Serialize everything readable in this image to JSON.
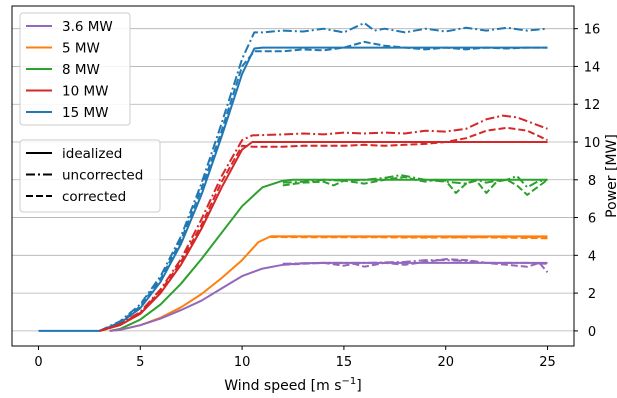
{
  "chart_data": {
    "type": "line",
    "title": "",
    "xlabel": "Wind speed [m s",
    "xlabel_sup": "−1",
    "xlabel_close": "]",
    "ylabel": "Power [MW]",
    "ylabel_side": "right",
    "xlim": [
      -1.3,
      26.3
    ],
    "ylim": [
      -0.8,
      17.2
    ],
    "xticks": [
      0,
      5,
      10,
      15,
      20,
      25
    ],
    "yticks": [
      0,
      2,
      4,
      6,
      8,
      10,
      12,
      14,
      16
    ],
    "grid": "horizontal",
    "legends": [
      {
        "placement": "top-left",
        "entries": [
          {
            "label": "3.6 MW",
            "color": "#9467bd",
            "style": "solid"
          },
          {
            "label": "5 MW",
            "color": "#ff7f0e",
            "style": "solid"
          },
          {
            "label": "8 MW",
            "color": "#2ca02c",
            "style": "solid"
          },
          {
            "label": "10 MW",
            "color": "#d62728",
            "style": "solid"
          },
          {
            "label": "15 MW",
            "color": "#1f77b4",
            "style": "solid"
          }
        ]
      },
      {
        "placement": "upper-left",
        "entries": [
          {
            "label": "idealized",
            "color": "#000000",
            "style": "solid"
          },
          {
            "label": "uncorrected",
            "color": "#000000",
            "style": "dashdot"
          },
          {
            "label": "corrected",
            "color": "#000000",
            "style": "dashed"
          }
        ]
      }
    ],
    "series": [
      {
        "turbine": "15 MW",
        "variant": "idealized",
        "color": "#1f77b4",
        "style": "solid",
        "points": [
          [
            0,
            0
          ],
          [
            3,
            0
          ],
          [
            4,
            0.4
          ],
          [
            5,
            1.2
          ],
          [
            6,
            2.6
          ],
          [
            7,
            4.6
          ],
          [
            8,
            7.2
          ],
          [
            9,
            10.3
          ],
          [
            10,
            13.6
          ],
          [
            10.6,
            14.95
          ],
          [
            11,
            15.0
          ],
          [
            25,
            15.0
          ]
        ]
      },
      {
        "turbine": "15 MW",
        "variant": "uncorrected",
        "color": "#1f77b4",
        "style": "dashdot",
        "points": [
          [
            3,
            0
          ],
          [
            4,
            0.5
          ],
          [
            5,
            1.4
          ],
          [
            6,
            2.9
          ],
          [
            7,
            5.0
          ],
          [
            8,
            7.8
          ],
          [
            9,
            11.0
          ],
          [
            10,
            14.4
          ],
          [
            10.6,
            15.8
          ],
          [
            11,
            15.8
          ],
          [
            12,
            15.9
          ],
          [
            13,
            15.85
          ],
          [
            14,
            16.0
          ],
          [
            15,
            15.8
          ],
          [
            16,
            16.3
          ],
          [
            16.5,
            15.9
          ],
          [
            17,
            16.0
          ],
          [
            18,
            15.8
          ],
          [
            19,
            16.0
          ],
          [
            20,
            15.85
          ],
          [
            21,
            16.05
          ],
          [
            22,
            15.9
          ],
          [
            23,
            16.05
          ],
          [
            24,
            15.9
          ],
          [
            25,
            16.0
          ]
        ]
      },
      {
        "turbine": "15 MW",
        "variant": "corrected",
        "color": "#1f77b4",
        "style": "dashed",
        "points": [
          [
            3,
            0
          ],
          [
            4,
            0.45
          ],
          [
            5,
            1.3
          ],
          [
            6,
            2.75
          ],
          [
            7,
            4.8
          ],
          [
            8,
            7.5
          ],
          [
            9,
            10.6
          ],
          [
            10,
            14.0
          ],
          [
            10.6,
            14.8
          ],
          [
            11,
            14.8
          ],
          [
            12,
            14.8
          ],
          [
            13,
            14.9
          ],
          [
            14,
            14.85
          ],
          [
            15,
            15.0
          ],
          [
            16,
            15.3
          ],
          [
            17,
            15.1
          ],
          [
            18,
            15.0
          ],
          [
            19,
            14.9
          ],
          [
            20,
            15.0
          ],
          [
            21,
            14.9
          ],
          [
            22,
            15.0
          ],
          [
            23,
            14.95
          ],
          [
            24,
            15.0
          ],
          [
            25,
            15.0
          ]
        ]
      },
      {
        "turbine": "10 MW",
        "variant": "idealized",
        "color": "#d62728",
        "style": "solid",
        "points": [
          [
            3,
            0
          ],
          [
            4,
            0.3
          ],
          [
            5,
            0.9
          ],
          [
            6,
            2.0
          ],
          [
            7,
            3.5
          ],
          [
            8,
            5.4
          ],
          [
            9,
            7.6
          ],
          [
            10,
            9.6
          ],
          [
            10.5,
            10.0
          ],
          [
            11,
            10.0
          ],
          [
            25,
            10.0
          ]
        ]
      },
      {
        "turbine": "10 MW",
        "variant": "uncorrected",
        "color": "#d62728",
        "style": "dashdot",
        "points": [
          [
            3,
            0
          ],
          [
            4,
            0.35
          ],
          [
            5,
            1.0
          ],
          [
            6,
            2.2
          ],
          [
            7,
            3.8
          ],
          [
            8,
            5.9
          ],
          [
            9,
            8.2
          ],
          [
            10,
            10.1
          ],
          [
            10.5,
            10.35
          ],
          [
            12,
            10.4
          ],
          [
            13,
            10.45
          ],
          [
            14,
            10.4
          ],
          [
            15,
            10.5
          ],
          [
            16,
            10.45
          ],
          [
            17,
            10.5
          ],
          [
            18,
            10.45
          ],
          [
            19,
            10.6
          ],
          [
            20,
            10.55
          ],
          [
            21,
            10.7
          ],
          [
            22,
            11.2
          ],
          [
            22.8,
            11.4
          ],
          [
            23.5,
            11.3
          ],
          [
            24,
            11.1
          ],
          [
            25,
            10.7
          ]
        ]
      },
      {
        "turbine": "10 MW",
        "variant": "corrected",
        "color": "#d62728",
        "style": "dashed",
        "points": [
          [
            3,
            0
          ],
          [
            4,
            0.32
          ],
          [
            5,
            0.95
          ],
          [
            6,
            2.1
          ],
          [
            7,
            3.65
          ],
          [
            8,
            5.6
          ],
          [
            9,
            7.9
          ],
          [
            10,
            9.8
          ],
          [
            10.5,
            9.75
          ],
          [
            12,
            9.75
          ],
          [
            13,
            9.8
          ],
          [
            14,
            9.8
          ],
          [
            15,
            9.8
          ],
          [
            16,
            9.85
          ],
          [
            17,
            9.8
          ],
          [
            18,
            9.85
          ],
          [
            19,
            9.9
          ],
          [
            20,
            10.0
          ],
          [
            21,
            10.2
          ],
          [
            22,
            10.6
          ],
          [
            23,
            10.75
          ],
          [
            24,
            10.6
          ],
          [
            25,
            10.1
          ]
        ]
      },
      {
        "turbine": "8 MW",
        "variant": "idealized",
        "color": "#2ca02c",
        "style": "solid",
        "points": [
          [
            3.5,
            0
          ],
          [
            4,
            0.1
          ],
          [
            5,
            0.6
          ],
          [
            6,
            1.4
          ],
          [
            7,
            2.5
          ],
          [
            8,
            3.8
          ],
          [
            9,
            5.2
          ],
          [
            10,
            6.6
          ],
          [
            11,
            7.6
          ],
          [
            12,
            7.95
          ],
          [
            12.5,
            8.0
          ],
          [
            25,
            8.0
          ]
        ]
      },
      {
        "turbine": "8 MW",
        "variant": "uncorrected",
        "color": "#2ca02c",
        "style": "dashdot",
        "points": [
          [
            12,
            7.85
          ],
          [
            13,
            7.9
          ],
          [
            14,
            8.0
          ],
          [
            15,
            7.95
          ],
          [
            16,
            8.0
          ],
          [
            17,
            8.1
          ],
          [
            17.8,
            8.25
          ],
          [
            18.5,
            8.1
          ],
          [
            19,
            8.0
          ],
          [
            20,
            7.9
          ],
          [
            21,
            7.8
          ],
          [
            21.5,
            8.0
          ],
          [
            22,
            7.85
          ],
          [
            22.5,
            7.95
          ],
          [
            23,
            8.0
          ],
          [
            23.5,
            8.2
          ],
          [
            24,
            7.6
          ],
          [
            24.5,
            7.9
          ],
          [
            25,
            8.0
          ]
        ]
      },
      {
        "turbine": "8 MW",
        "variant": "corrected",
        "color": "#2ca02c",
        "style": "dashed",
        "points": [
          [
            12,
            7.7
          ],
          [
            13,
            7.85
          ],
          [
            14,
            7.9
          ],
          [
            14.5,
            7.7
          ],
          [
            15,
            7.95
          ],
          [
            16,
            7.8
          ],
          [
            17,
            8.0
          ],
          [
            18,
            8.15
          ],
          [
            18.5,
            8.0
          ],
          [
            19,
            7.9
          ],
          [
            19.5,
            8.0
          ],
          [
            20,
            7.95
          ],
          [
            20.5,
            7.3
          ],
          [
            21,
            7.8
          ],
          [
            21.5,
            7.95
          ],
          [
            22,
            7.3
          ],
          [
            22.5,
            7.9
          ],
          [
            23,
            8.0
          ],
          [
            23.5,
            7.7
          ],
          [
            24,
            7.2
          ],
          [
            24.5,
            7.6
          ],
          [
            25,
            8.0
          ]
        ]
      },
      {
        "turbine": "5 MW",
        "variant": "idealized",
        "color": "#ff7f0e",
        "style": "solid",
        "points": [
          [
            3.5,
            0
          ],
          [
            4,
            0.05
          ],
          [
            5,
            0.3
          ],
          [
            6,
            0.7
          ],
          [
            7,
            1.25
          ],
          [
            8,
            1.95
          ],
          [
            9,
            2.8
          ],
          [
            10,
            3.75
          ],
          [
            10.8,
            4.7
          ],
          [
            11.4,
            5.0
          ],
          [
            25,
            5.0
          ]
        ]
      },
      {
        "turbine": "5 MW",
        "variant": "uncorrected",
        "color": "#ff7f0e",
        "style": "dashdot",
        "points": [
          [
            11.4,
            5.0
          ],
          [
            13,
            5.0
          ],
          [
            15,
            4.98
          ],
          [
            18,
            4.98
          ],
          [
            21,
            4.96
          ],
          [
            23,
            4.98
          ],
          [
            25,
            4.96
          ]
        ]
      },
      {
        "turbine": "5 MW",
        "variant": "corrected",
        "color": "#ff7f0e",
        "style": "dashed",
        "points": [
          [
            11.4,
            4.97
          ],
          [
            13,
            4.96
          ],
          [
            16,
            4.96
          ],
          [
            19,
            4.94
          ],
          [
            22,
            4.95
          ],
          [
            25,
            4.9
          ]
        ]
      },
      {
        "turbine": "3.6 MW",
        "variant": "idealized",
        "color": "#9467bd",
        "style": "solid",
        "points": [
          [
            3.5,
            0
          ],
          [
            4,
            0.05
          ],
          [
            5,
            0.3
          ],
          [
            6,
            0.65
          ],
          [
            7,
            1.1
          ],
          [
            8,
            1.6
          ],
          [
            9,
            2.25
          ],
          [
            10,
            2.9
          ],
          [
            11,
            3.3
          ],
          [
            12,
            3.5
          ],
          [
            13,
            3.58
          ],
          [
            14,
            3.6
          ],
          [
            25,
            3.6
          ]
        ]
      },
      {
        "turbine": "3.6 MW",
        "variant": "uncorrected",
        "color": "#9467bd",
        "style": "dashdot",
        "points": [
          [
            12,
            3.55
          ],
          [
            14,
            3.6
          ],
          [
            16,
            3.6
          ],
          [
            18,
            3.65
          ],
          [
            19,
            3.75
          ],
          [
            20,
            3.75
          ],
          [
            21,
            3.7
          ],
          [
            22,
            3.6
          ],
          [
            23,
            3.6
          ],
          [
            24,
            3.6
          ],
          [
            25,
            3.55
          ]
        ]
      },
      {
        "turbine": "3.6 MW",
        "variant": "corrected",
        "color": "#9467bd",
        "style": "dashed",
        "points": [
          [
            12,
            3.5
          ],
          [
            13,
            3.55
          ],
          [
            14,
            3.6
          ],
          [
            15,
            3.45
          ],
          [
            15.5,
            3.55
          ],
          [
            16,
            3.4
          ],
          [
            17,
            3.6
          ],
          [
            18,
            3.5
          ],
          [
            19,
            3.65
          ],
          [
            20,
            3.8
          ],
          [
            21,
            3.75
          ],
          [
            22,
            3.6
          ],
          [
            23,
            3.5
          ],
          [
            24,
            3.4
          ],
          [
            24.6,
            3.6
          ],
          [
            25,
            3.1
          ]
        ]
      }
    ]
  }
}
